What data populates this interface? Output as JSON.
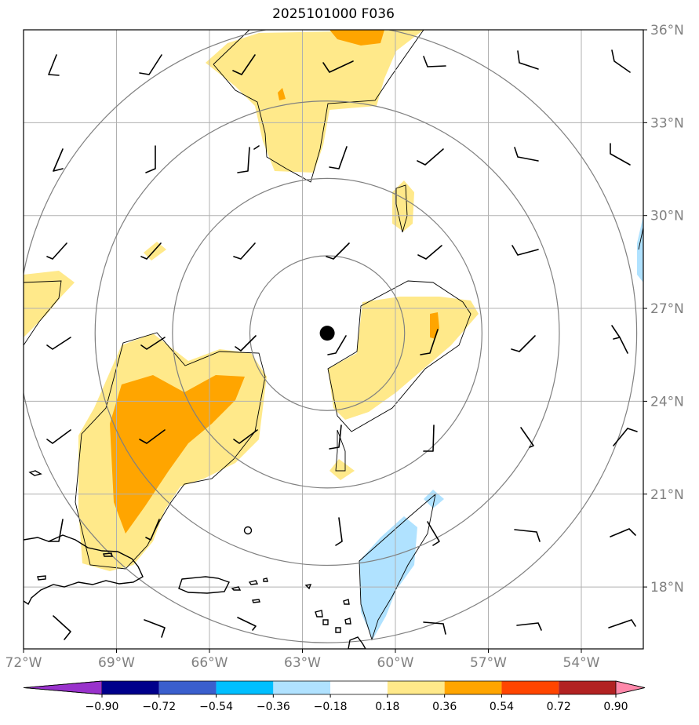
{
  "title": "2025101000 F036",
  "map": {
    "lon_range": [
      -72,
      -52
    ],
    "lat_range": [
      16,
      36
    ],
    "lon_ticks": [
      "72°W",
      "69°W",
      "66°W",
      "63°W",
      "60°W",
      "57°W",
      "54°W"
    ],
    "lat_ticks": [
      "36°N",
      "33°N",
      "30°N",
      "27°N",
      "24°N",
      "21°N",
      "18°N"
    ],
    "center_marker": {
      "lon": -62.2,
      "lat": 26.2
    },
    "range_rings_deg": [
      2.5,
      5,
      7.5,
      10
    ]
  },
  "colorbar": {
    "ticks": [
      "−0.90",
      "−0.72",
      "−0.54",
      "−0.36",
      "−0.18",
      "0.18",
      "0.36",
      "0.54",
      "0.72",
      "0.90"
    ],
    "colors": [
      "#9932cc",
      "#00008b",
      "#3a5fcd",
      "#00bfff",
      "#b0e2ff",
      "#ffffff",
      "#ffe98a",
      "#ffa500",
      "#ff4500",
      "#b22222",
      "#ff88aa"
    ]
  },
  "colors": {
    "light_positive": "#ffe98a",
    "medium_positive": "#ffa500",
    "light_negative": "#b0e2ff",
    "grid": "#b0b0b0",
    "ring": "#808080"
  }
}
